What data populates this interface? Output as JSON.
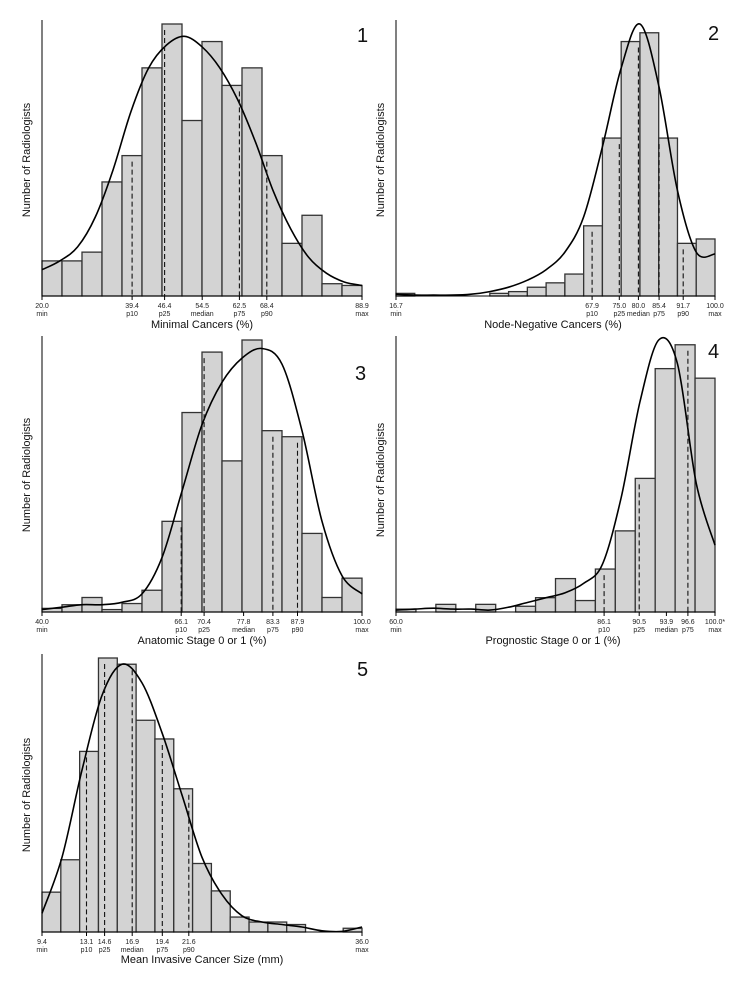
{
  "chart_data": [
    {
      "type": "bar",
      "panel_label": "1",
      "xlabel": "Minimal Cancers (%)",
      "ylabel": "Number of Radiologists",
      "xlim": [
        20.0,
        88.9
      ],
      "bin_width": 3.4,
      "values": [
        2,
        2,
        2.5,
        6.5,
        8,
        13,
        15.5,
        10,
        14.5,
        12,
        13,
        8.0,
        3,
        4.6,
        0.7,
        0.6
      ],
      "kde": [
        1.5,
        2.0,
        2.8,
        4.5,
        7.2,
        10.5,
        13.0,
        14.3,
        14.8,
        14.2,
        13.0,
        11.2,
        8.8,
        6.0,
        3.8,
        2.2,
        1.3,
        0.8,
        0.6
      ],
      "percentiles": [
        {
          "value": 20.0,
          "label": "20.0",
          "tag": "min",
          "dashed": false
        },
        {
          "value": 39.4,
          "label": "39.4",
          "tag": "p10",
          "dashed": true
        },
        {
          "value": 46.4,
          "label": "46.4",
          "tag": "p25",
          "dashed": true
        },
        {
          "value": 54.5,
          "label": "54.5",
          "tag": "median",
          "dashed": false
        },
        {
          "value": 62.5,
          "label": "62.5",
          "tag": "p75",
          "dashed": true
        },
        {
          "value": 68.4,
          "label": "68.4",
          "tag": "p90",
          "dashed": true
        },
        {
          "value": 88.9,
          "label": "88.9",
          "tag": "max",
          "dashed": false
        }
      ]
    },
    {
      "type": "bar",
      "panel_label": "2",
      "xlabel": "Node-Negative Cancers (%)",
      "ylabel": "Number of Radiologists",
      "xlim": [
        16.7,
        100.0
      ],
      "bin_width": 4.1,
      "values": [
        0.3,
        0,
        0,
        0,
        0,
        0.3,
        0.5,
        1,
        1.5,
        2.5,
        8,
        18,
        29,
        30,
        18,
        6,
        6.5
      ],
      "kde": [
        0.2,
        0.1,
        0.1,
        0.1,
        0.2,
        0.5,
        1.0,
        1.8,
        3.0,
        5.0,
        9.0,
        17.0,
        26.0,
        31.0,
        24.0,
        12.0,
        5.0,
        4.8
      ],
      "percentiles": [
        {
          "value": 16.7,
          "label": "16.7",
          "tag": "min",
          "dashed": false
        },
        {
          "value": 67.9,
          "label": "67.9",
          "tag": "p10",
          "dashed": true
        },
        {
          "value": 75.0,
          "label": "75.0",
          "tag": "p25",
          "dashed": true
        },
        {
          "value": 80.0,
          "label": "80.0",
          "tag": "median",
          "dashed": true
        },
        {
          "value": 85.4,
          "label": "85.4",
          "tag": "p75",
          "dashed": true
        },
        {
          "value": 91.7,
          "label": "91.7",
          "tag": "p90",
          "dashed": true
        },
        {
          "value": 100.0,
          "label": "100.0",
          "tag": "max",
          "dashed": false
        }
      ]
    },
    {
      "type": "bar",
      "panel_label": "3",
      "xlabel": "Anatomic Stage 0 or 1 (%)",
      "ylabel": "Number of Radiologists",
      "xlim": [
        40.0,
        100.0
      ],
      "bin_width": 3.0,
      "values": [
        0.3,
        0.6,
        1.2,
        0.2,
        0.7,
        1.8,
        7.5,
        16.5,
        21.5,
        12.5,
        22.5,
        15,
        14.5,
        6.5,
        1.2,
        2.8
      ],
      "kde": [
        0.2,
        0.4,
        0.6,
        0.6,
        0.8,
        1.5,
        4.5,
        10.0,
        15.5,
        19.0,
        21.0,
        21.8,
        20.5,
        15.0,
        7.5,
        3.0,
        1.5
      ],
      "percentiles": [
        {
          "value": 40.0,
          "label": "40.0",
          "tag": "min",
          "dashed": false
        },
        {
          "value": 66.1,
          "label": "66.1",
          "tag": "p10",
          "dashed": true
        },
        {
          "value": 70.4,
          "label": "70.4",
          "tag": "p25",
          "dashed": true
        },
        {
          "value": 77.8,
          "label": "77.8",
          "tag": "median",
          "dashed": false
        },
        {
          "value": 83.3,
          "label": "83.3",
          "tag": "p75",
          "dashed": true
        },
        {
          "value": 87.9,
          "label": "87.9",
          "tag": "p90",
          "dashed": true
        },
        {
          "value": 100.0,
          "label": "100.0",
          "tag": "max",
          "dashed": false
        }
      ]
    },
    {
      "type": "bar",
      "panel_label": "4",
      "xlabel": "Prognostic Stage 0 or 1 (%)",
      "ylabel": "Number of Radiologists",
      "xlim": [
        60.0,
        100.0
      ],
      "bin_width": 2.0,
      "values": [
        0.3,
        0,
        0.8,
        0,
        0.8,
        0,
        0.6,
        1.5,
        3.5,
        1.2,
        4.5,
        8.5,
        14,
        25.5,
        28,
        24.5
      ],
      "kde": [
        0.2,
        0.3,
        0.4,
        0.3,
        0.3,
        0.2,
        0.5,
        1.0,
        1.5,
        2.0,
        3.0,
        5.0,
        12.0,
        22.0,
        28.5,
        26.0,
        13.5,
        7.0
      ],
      "percentiles": [
        {
          "value": 60.0,
          "label": "60.0",
          "tag": "min",
          "dashed": false
        },
        {
          "value": 86.1,
          "label": "86.1",
          "tag": "p10",
          "dashed": true
        },
        {
          "value": 90.5,
          "label": "90.5",
          "tag": "p25",
          "dashed": true
        },
        {
          "value": 93.9,
          "label": "93.9",
          "tag": "median",
          "dashed": false
        },
        {
          "value": 96.6,
          "label": "96.6",
          "tag": "p75",
          "dashed": true
        },
        {
          "value": 100.0,
          "label": "100.0*",
          "tag": "max",
          "dashed": false
        }
      ]
    },
    {
      "type": "bar",
      "panel_label": "5",
      "xlabel": "Mean Invasive Cancer Size (mm)",
      "ylabel": "Number of Radiologists",
      "xlim": [
        9.4,
        36.0
      ],
      "bin_width": 1.33,
      "values": [
        3.2,
        5.8,
        14.5,
        22,
        21.5,
        17,
        15.5,
        11.5,
        5.5,
        3.3,
        1.2,
        0.8,
        0.8,
        0.6,
        0,
        0,
        0.3
      ],
      "kde": [
        1.5,
        6.0,
        13.0,
        19.0,
        21.5,
        20.0,
        16.0,
        11.0,
        6.0,
        3.0,
        1.3,
        0.8,
        0.6,
        0.4,
        0.1,
        0.05,
        0.4
      ],
      "percentiles": [
        {
          "value": 9.4,
          "label": "9.4",
          "tag": "min",
          "dashed": false
        },
        {
          "value": 13.1,
          "label": "13.1",
          "tag": "p10",
          "dashed": true
        },
        {
          "value": 14.6,
          "label": "14.6",
          "tag": "p25",
          "dashed": true
        },
        {
          "value": 16.9,
          "label": "16.9",
          "tag": "median",
          "dashed": true
        },
        {
          "value": 19.4,
          "label": "19.4",
          "tag": "p75",
          "dashed": true
        },
        {
          "value": 21.6,
          "label": "21.6",
          "tag": "p90",
          "dashed": true
        },
        {
          "value": 36.0,
          "label": "36.0",
          "tag": "max",
          "dashed": false
        }
      ]
    }
  ]
}
